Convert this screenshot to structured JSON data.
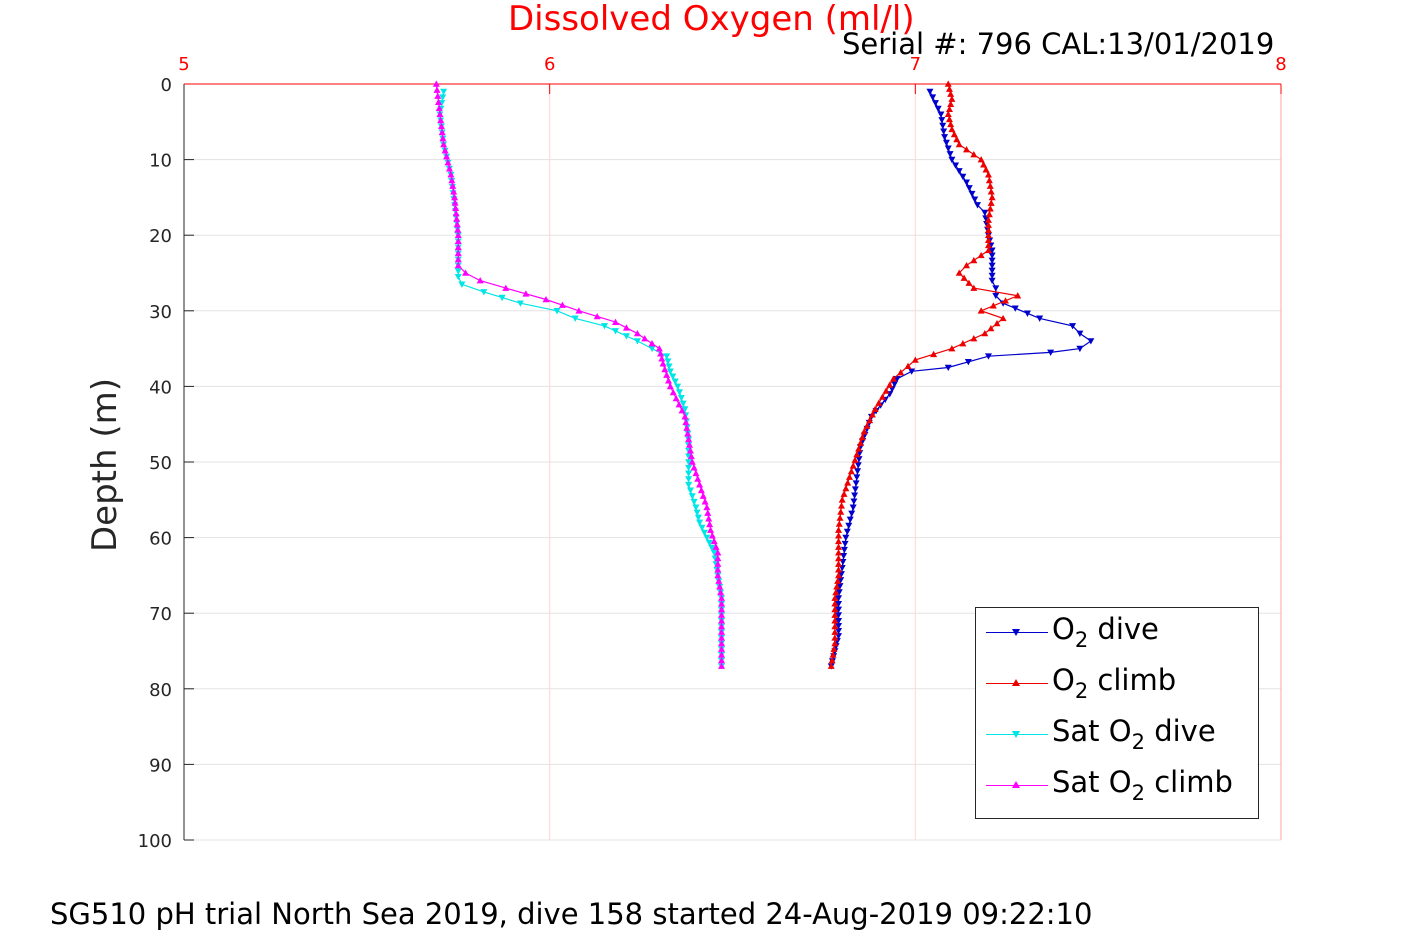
{
  "title": "Dissolved Oxygen (ml/l)",
  "serial_text": "Serial #: 796  CAL:13/01/2019",
  "footer": "SG510 pH trial North Sea 2019, dive 158 started 24-Aug-2019 09:22:10",
  "colors": {
    "title": "#ff0000",
    "o2_dive": "#0000cc",
    "o2_climb": "#ee0000",
    "sat_dive": "#00e5e5",
    "sat_climb": "#ff00ff"
  },
  "chart_data": {
    "type": "line",
    "title": "Dissolved Oxygen (ml/l)",
    "xlabel": "",
    "ylabel": "Depth (m)",
    "xlim": [
      5,
      8
    ],
    "ylim": [
      0,
      100
    ],
    "y_reversed": true,
    "x_axis_position": "top",
    "x_ticks": [
      "5",
      "6",
      "7",
      "8"
    ],
    "y_ticks": [
      "0",
      "10",
      "20",
      "30",
      "40",
      "50",
      "60",
      "70",
      "80",
      "90",
      "100"
    ],
    "grid": true,
    "legend_position": "bottom-right",
    "series": [
      {
        "name": "O2 dive",
        "legend_main": "O",
        "legend_sub": "2",
        "legend_tail": " dive",
        "color": "#0000cc",
        "marker": "triangle-down",
        "x": [
          7.04,
          7.07,
          7.08,
          7.1,
          7.14,
          7.17,
          7.19,
          7.2,
          7.21,
          7.21,
          7.21,
          7.22,
          7.22,
          7.24,
          7.34,
          7.43,
          7.45,
          7.48,
          7.45,
          7.37,
          7.2,
          7.09,
          6.99,
          6.95,
          6.93,
          6.88,
          6.85,
          6.84,
          6.83,
          6.81,
          6.8,
          6.79,
          6.79,
          6.79,
          6.78,
          6.77
        ],
        "y": [
          1,
          4,
          7,
          10,
          13,
          16,
          17,
          20,
          22,
          24,
          26,
          27,
          28,
          29,
          31,
          32,
          33,
          34,
          35,
          35.5,
          36,
          37.5,
          38,
          39,
          41,
          44,
          48,
          52,
          56,
          60,
          64,
          68,
          71,
          73,
          75,
          77
        ]
      },
      {
        "name": "O2 climb",
        "legend_main": "O",
        "legend_sub": "2",
        "legend_tail": " climb",
        "color": "#ee0000",
        "marker": "triangle-up",
        "x": [
          6.77,
          6.78,
          6.78,
          6.78,
          6.79,
          6.79,
          6.79,
          6.8,
          6.82,
          6.84,
          6.86,
          6.89,
          6.94,
          7.0,
          7.1,
          7.19,
          7.24,
          7.18,
          7.28,
          7.16,
          7.12,
          7.14,
          7.2,
          7.2,
          7.2,
          7.21,
          7.2,
          7.18,
          7.12,
          7.1,
          7.09,
          7.1,
          7.09
        ],
        "y": [
          77,
          74,
          71,
          68,
          65,
          62,
          59,
          55,
          52,
          49,
          46,
          43,
          39,
          36.5,
          35,
          33,
          31,
          30,
          28,
          27,
          25,
          24,
          22,
          20,
          18,
          15,
          12,
          10,
          8,
          6,
          4,
          2,
          0
        ]
      },
      {
        "name": "Sat O2 dive",
        "legend_main": "Sat O",
        "legend_sub": "2",
        "legend_tail": " dive",
        "color": "#00e5e5",
        "marker": "triangle-down",
        "x": [
          5.71,
          5.7,
          5.71,
          5.73,
          5.74,
          5.75,
          5.75,
          5.75,
          5.76,
          5.82,
          5.92,
          6.02,
          6.07,
          6.15,
          6.24,
          6.28,
          6.32,
          6.33,
          6.35,
          6.37,
          6.38,
          6.38,
          6.38,
          6.4,
          6.41,
          6.43,
          6.45,
          6.46,
          6.47,
          6.47,
          6.47,
          6.47
        ],
        "y": [
          1,
          4,
          8,
          12,
          16,
          20,
          24,
          25.5,
          26.5,
          27.5,
          29,
          30,
          31,
          32,
          34,
          35,
          36,
          38,
          40,
          43,
          47,
          50,
          53,
          56,
          58,
          60,
          62,
          65,
          68,
          71,
          74,
          77
        ]
      },
      {
        "name": "Sat O2 climb",
        "legend_main": "Sat O",
        "legend_sub": "2",
        "legend_tail": " climb",
        "color": "#ff00ff",
        "marker": "triangle-up",
        "x": [
          6.47,
          6.47,
          6.47,
          6.47,
          6.46,
          6.46,
          6.44,
          6.43,
          6.41,
          6.39,
          6.38,
          6.37,
          6.33,
          6.31,
          6.3,
          6.24,
          6.18,
          6.08,
          5.99,
          5.88,
          5.81,
          5.77,
          5.75,
          5.75,
          5.74,
          5.73,
          5.71,
          5.7,
          5.69
        ],
        "y": [
          77,
          74,
          71,
          68,
          65,
          62,
          59,
          56,
          53,
          50,
          47,
          44,
          40,
          37,
          35,
          33,
          31.5,
          30,
          28.5,
          27,
          26,
          25,
          24,
          20,
          15,
          12,
          8,
          4,
          0
        ]
      }
    ]
  }
}
